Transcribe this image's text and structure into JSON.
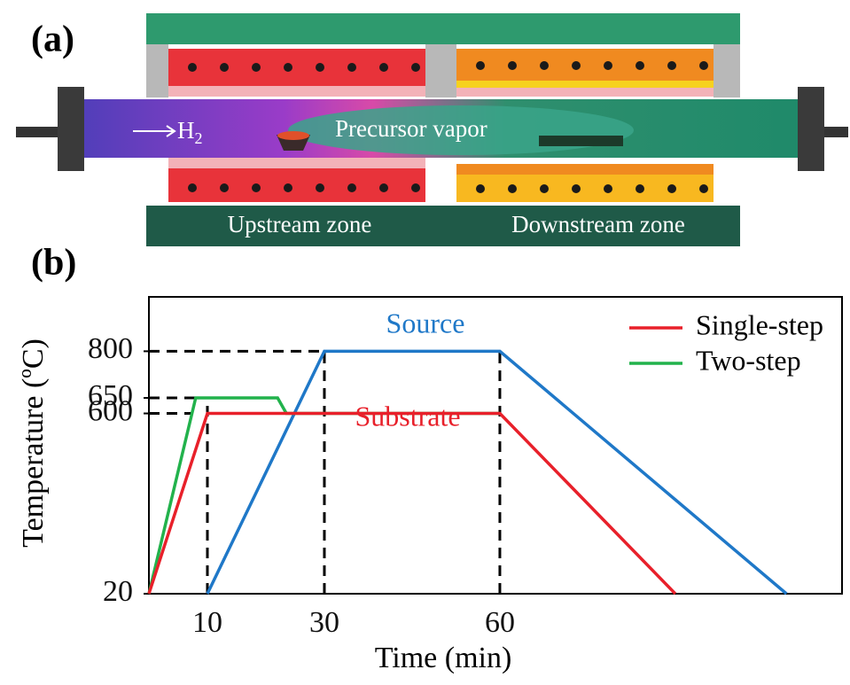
{
  "panel_a": {
    "label": "(a)",
    "gas": "H",
    "gas_subscript": "2",
    "vapor": "Precursor vapor",
    "upstream": "Upstream zone",
    "downstream": "Downstream zone"
  },
  "chart_data": {
    "type": "line",
    "panel_label": "(b)",
    "xlabel": "Time (min)",
    "ylabel": "Temperature (ºC)",
    "xlim": [
      0,
      118.5
    ],
    "ylim": [
      20,
      975
    ],
    "xticks": [
      10,
      30,
      60
    ],
    "yticks": [
      20,
      600,
      650,
      800
    ],
    "reference_lines": true,
    "legend_position": "upper right",
    "annotations": [
      {
        "text": "Substrate",
        "color": "#e8202a"
      }
    ],
    "series": [
      {
        "name": "Source",
        "color": "#1f78c8",
        "legend": false,
        "x": [
          10,
          30,
          60,
          109
        ],
        "values": [
          20,
          800,
          800,
          20
        ]
      },
      {
        "name": "Two-step",
        "color": "#22b24c",
        "legend": true,
        "x": [
          0,
          8,
          22,
          23.5,
          60
        ],
        "values": [
          20,
          650,
          650,
          600,
          600
        ]
      },
      {
        "name": "Single-step",
        "color": "#e8202a",
        "legend": true,
        "x": [
          0,
          10,
          60,
          90
        ],
        "values": [
          20,
          600,
          600,
          20
        ]
      }
    ]
  }
}
